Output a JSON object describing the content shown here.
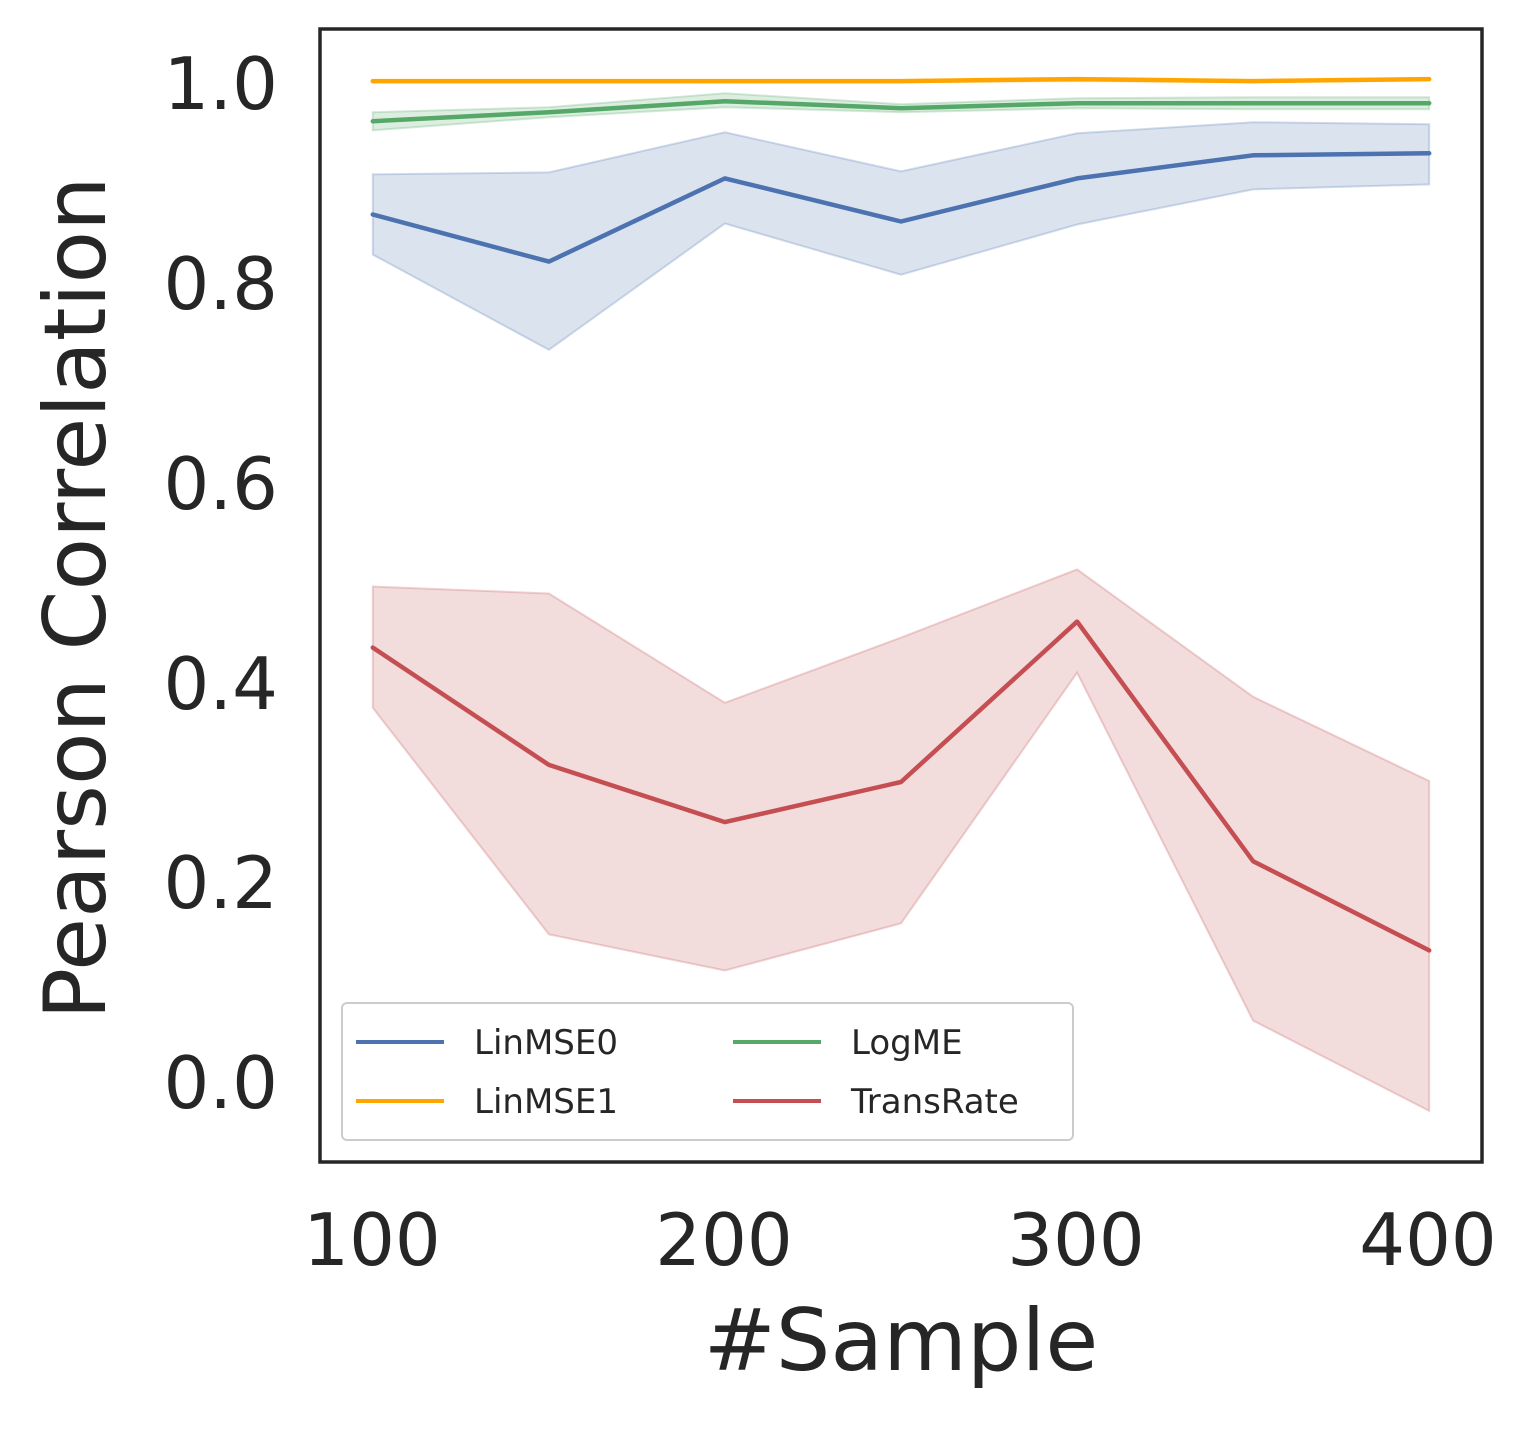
{
  "chart_data": {
    "type": "line",
    "title": "",
    "xlabel": "#Sample",
    "ylabel": "Pearson Correlation",
    "xlim": [
      85,
      415
    ],
    "ylim": [
      -0.08,
      1.05
    ],
    "xticks": [
      100,
      200,
      300,
      400
    ],
    "xtick_labels": [
      "100",
      "200",
      "300",
      "400"
    ],
    "yticks": [
      0.0,
      0.2,
      0.4,
      0.6,
      0.8,
      1.0
    ],
    "ytick_labels": [
      "0.0",
      "0.2",
      "0.4",
      "0.6",
      "0.8",
      "1.0"
    ],
    "grid": false,
    "legend_position": "lower-left",
    "legend_columns": 2,
    "x": [
      100,
      150,
      200,
      250,
      300,
      350,
      400
    ],
    "series": [
      {
        "name": "LinMSE0",
        "color": "#4c72b0",
        "values": [
          0.865,
          0.818,
          0.901,
          0.858,
          0.901,
          0.924,
          0.926
        ],
        "lower": [
          0.825,
          0.73,
          0.856,
          0.805,
          0.855,
          0.89,
          0.895
        ],
        "upper": [
          0.905,
          0.907,
          0.947,
          0.908,
          0.946,
          0.957,
          0.955
        ]
      },
      {
        "name": "LinMSE1",
        "color": "#ffa500",
        "values": [
          0.998,
          0.998,
          0.998,
          0.998,
          1.0,
          0.998,
          1.0
        ],
        "lower": [
          0.997,
          0.997,
          0.997,
          0.997,
          0.998,
          0.997,
          0.999
        ],
        "upper": [
          0.999,
          0.999,
          0.999,
          0.999,
          1.001,
          0.999,
          1.001
        ]
      },
      {
        "name": "LogME",
        "color": "#55a868",
        "values": [
          0.958,
          0.967,
          0.978,
          0.971,
          0.976,
          0.976,
          0.976
        ],
        "lower": [
          0.949,
          0.962,
          0.972,
          0.967,
          0.971,
          0.97,
          0.97
        ],
        "upper": [
          0.967,
          0.972,
          0.986,
          0.975,
          0.981,
          0.982,
          0.982
        ]
      },
      {
        "name": "TransRate",
        "color": "#c44e52",
        "values": [
          0.433,
          0.316,
          0.259,
          0.299,
          0.459,
          0.22,
          0.131
        ],
        "lower": [
          0.373,
          0.147,
          0.111,
          0.158,
          0.408,
          0.061,
          -0.029
        ],
        "upper": [
          0.494,
          0.487,
          0.378,
          0.443,
          0.511,
          0.384,
          0.3
        ]
      }
    ]
  }
}
